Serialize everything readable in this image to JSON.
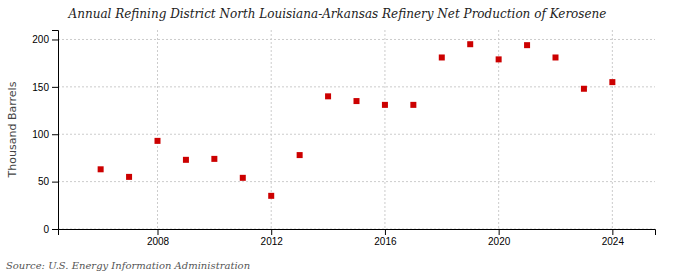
{
  "chart_data": {
    "type": "scatter",
    "title": "Annual Refining District North Louisiana-Arkansas Refinery Net Production of Kerosene",
    "ylabel": "Thousand Barrels",
    "source": "Source: U.S. Energy Information Administration",
    "x": [
      2006,
      2007,
      2008,
      2009,
      2010,
      2011,
      2012,
      2013,
      2014,
      2015,
      2016,
      2017,
      2018,
      2019,
      2020,
      2021,
      2022,
      2023,
      2024
    ],
    "values": [
      63,
      55,
      93,
      73,
      74,
      54,
      35,
      78,
      140,
      135,
      131,
      131,
      181,
      195,
      179,
      194,
      181,
      148,
      155
    ],
    "color": "#cc0000",
    "marker": "square",
    "xlim": [
      2004.5,
      2025.5
    ],
    "xticks": [
      2008,
      2012,
      2016,
      2020,
      2024
    ],
    "ylim": [
      0,
      210
    ],
    "yticks": [
      0,
      50,
      100,
      150,
      200
    ],
    "grid": true
  }
}
